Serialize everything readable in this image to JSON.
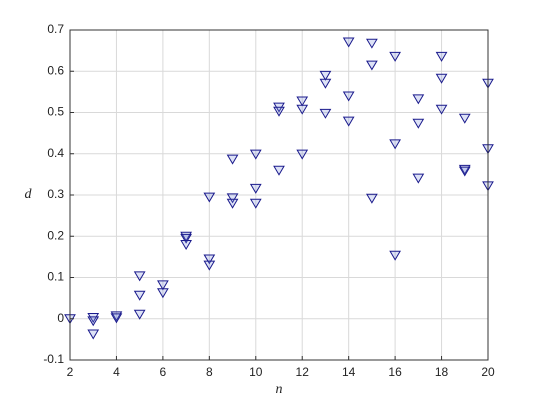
{
  "chart_data": {
    "type": "scatter",
    "xlabel": "n",
    "ylabel": "d",
    "x": [
      2,
      3,
      3,
      3,
      4,
      4,
      5,
      5,
      5,
      6,
      6,
      7,
      7,
      7,
      8,
      8,
      8,
      9,
      9,
      9,
      10,
      10,
      10,
      11,
      11,
      11,
      12,
      12,
      12,
      13,
      13,
      13,
      14,
      14,
      14,
      15,
      15,
      15,
      16,
      16,
      16,
      17,
      17,
      17,
      18,
      18,
      18,
      19,
      19,
      19,
      20,
      20,
      20
    ],
    "y": [
      0,
      0.003,
      -0.005,
      -0.037,
      0.007,
      0.002,
      0.104,
      0.057,
      0.011,
      0.082,
      0.063,
      0.2,
      0.195,
      0.18,
      0.295,
      0.145,
      0.13,
      0.387,
      0.293,
      0.28,
      0.399,
      0.316,
      0.28,
      0.513,
      0.503,
      0.36,
      0.528,
      0.508,
      0.399,
      0.59,
      0.571,
      0.498,
      0.671,
      0.54,
      0.479,
      0.668,
      0.615,
      0.292,
      0.636,
      0.424,
      0.154,
      0.533,
      0.474,
      0.341,
      0.636,
      0.583,
      0.508,
      0.486,
      0.362,
      0.358,
      0.571,
      0.412,
      0.322
    ],
    "color": "#1a1a8c",
    "xlim": [
      2,
      20
    ],
    "xticks": [
      2,
      4,
      6,
      8,
      10,
      12,
      14,
      16,
      18,
      20
    ],
    "ylim": [
      -0.1,
      0.7
    ],
    "yticks": [
      -0.1,
      0,
      0.1,
      0.2,
      0.3,
      0.4,
      0.5,
      0.6,
      0.7
    ],
    "grid": true
  }
}
